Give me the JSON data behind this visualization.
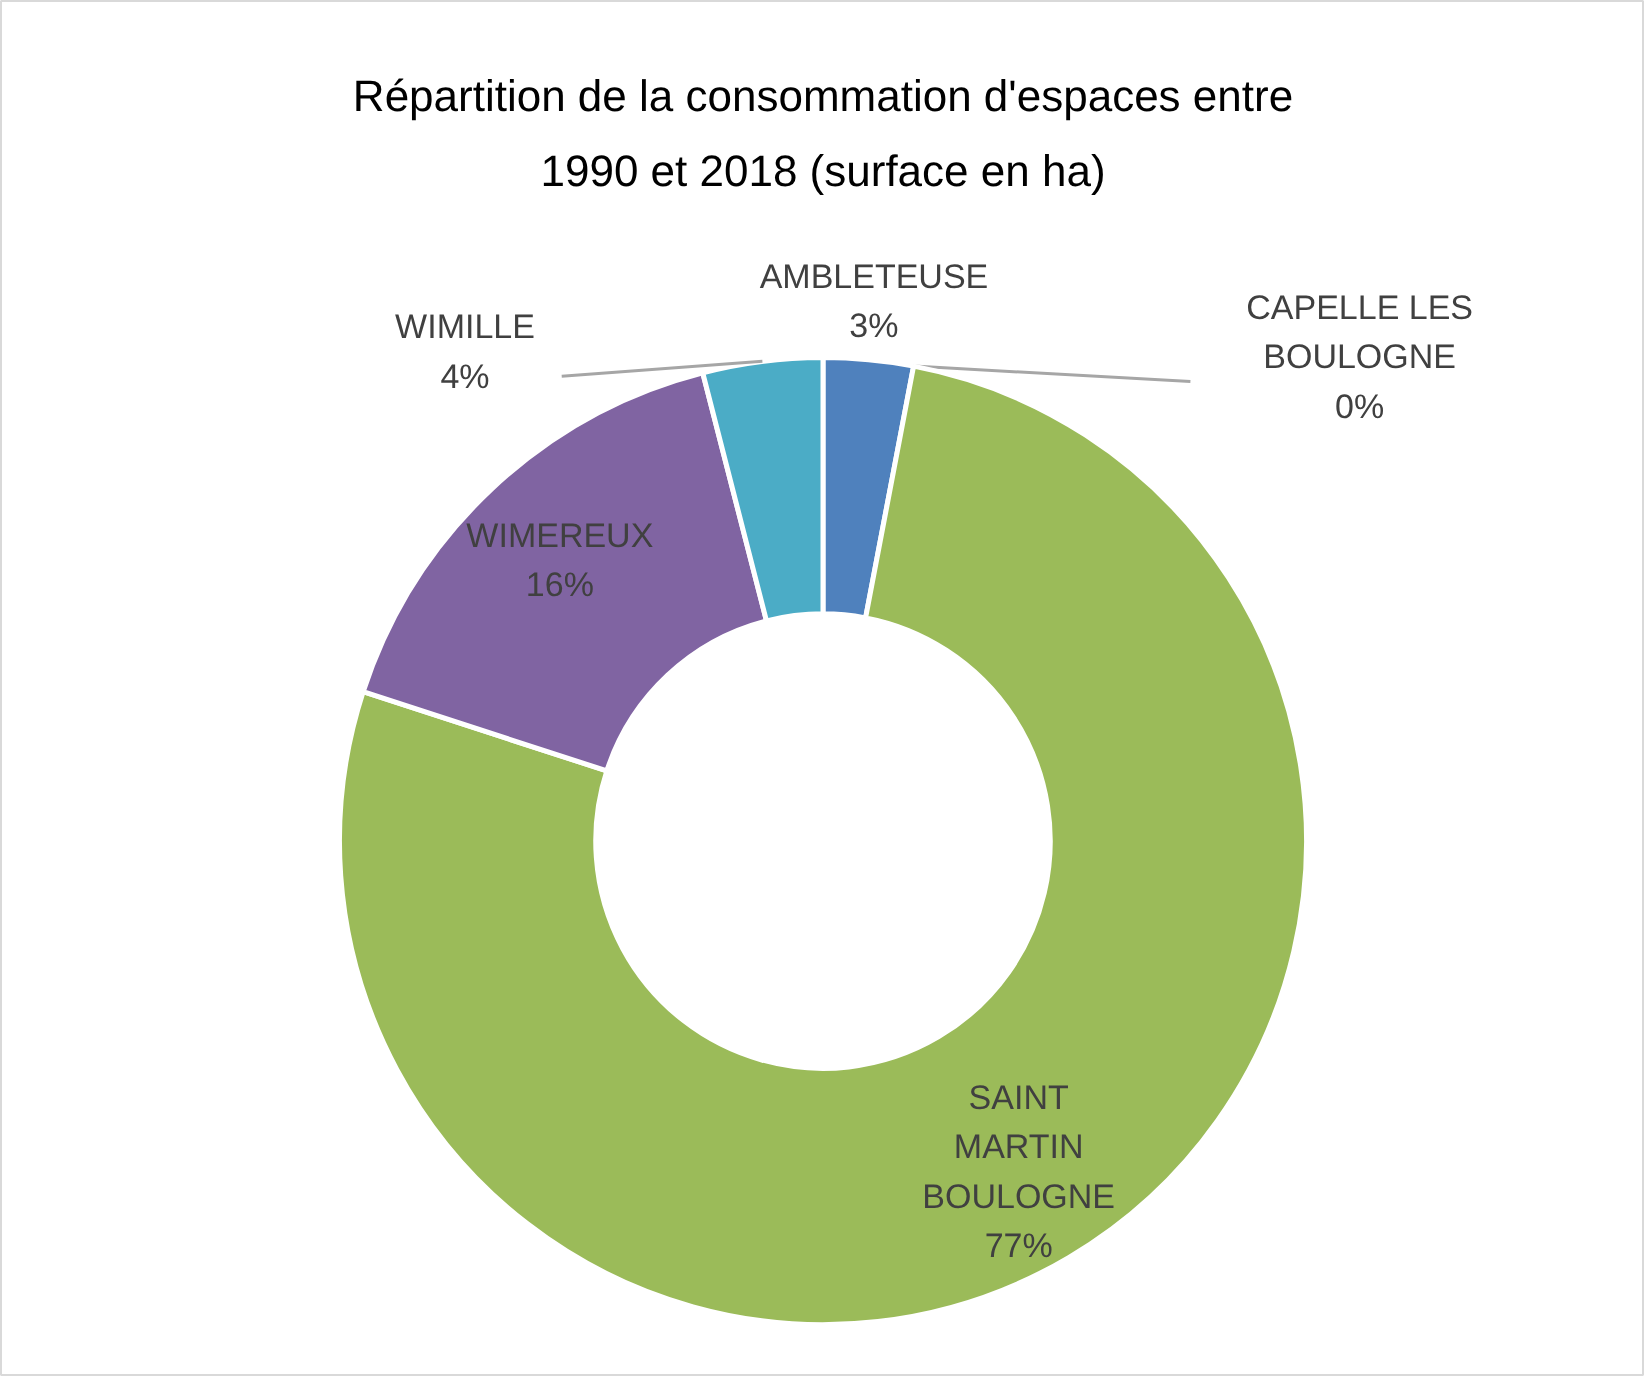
{
  "chart_data": {
    "type": "donut",
    "title": "Répartition de la consommation d'espaces entre 1990 et 2018 (surface en ha)",
    "categories": [
      "AMBLETEUSE",
      "CAPELLE LES BOULOGNE",
      "SAINT MARTIN BOULOGNE",
      "WIMEREUX",
      "WIMILLE"
    ],
    "values": [
      3,
      0,
      77,
      16,
      4
    ],
    "colors": [
      "#4f81bd",
      "#a5a5a5",
      "#9bbb59",
      "#8064a2",
      "#4bacc6"
    ],
    "value_labels": [
      "3%",
      "0%",
      "77%",
      "16%",
      "4%"
    ]
  }
}
